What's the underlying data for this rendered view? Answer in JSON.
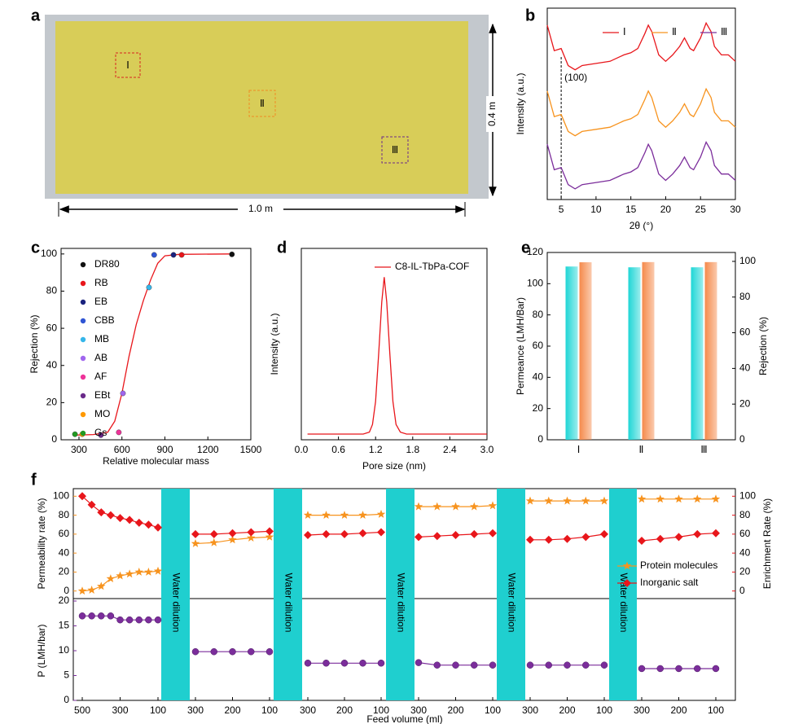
{
  "panel_labels": [
    "a",
    "b",
    "c",
    "d",
    "e",
    "f"
  ],
  "photo": {
    "regions": [
      "Ⅰ",
      "Ⅱ",
      "Ⅲ"
    ],
    "region_colors": [
      "#d9241f",
      "#f08a24",
      "#6b2a8a"
    ],
    "width_label": "1.0 m",
    "height_label": "0.4 m"
  },
  "chart_data": [
    {
      "type": "line",
      "xlabel": "2θ (°)",
      "ylabel": "Intensity (a.u.)",
      "x": [
        3,
        4,
        5,
        6,
        7,
        8,
        10,
        12,
        14,
        15,
        16,
        17,
        17.5,
        18,
        19,
        20,
        21,
        22,
        22.7,
        23.5,
        24,
        25,
        25.8,
        26.5,
        27,
        28,
        29,
        30
      ],
      "series": [
        {
          "name": "Ⅰ",
          "color": "#e8161b",
          "values": [
            77,
            65,
            66,
            58,
            56,
            58,
            59,
            60,
            63,
            64,
            66,
            73,
            77,
            74,
            63,
            60,
            63,
            67,
            71,
            66,
            65,
            71,
            78,
            74,
            67,
            63,
            63,
            60
          ]
        },
        {
          "name": "Ⅱ",
          "color": "#f7931e",
          "values": [
            46,
            34,
            35,
            27,
            25,
            27,
            28,
            29,
            32,
            33,
            35,
            42,
            46,
            43,
            32,
            29,
            32,
            36,
            40,
            35,
            34,
            40,
            47,
            43,
            36,
            32,
            32,
            29
          ]
        },
        {
          "name": "Ⅲ",
          "color": "#7b2d9b",
          "values": [
            21,
            9,
            10,
            2,
            0,
            2,
            3,
            4,
            7,
            8,
            10,
            17,
            21,
            18,
            7,
            4,
            7,
            11,
            15,
            10,
            9,
            15,
            22,
            18,
            11,
            7,
            7,
            4
          ]
        }
      ],
      "ref_line": {
        "x": 5,
        "label": "(100)"
      },
      "xlim": [
        3,
        30
      ],
      "xticks": [
        5,
        10,
        15,
        20,
        25,
        30
      ],
      "ylim": [
        -5,
        85
      ]
    },
    {
      "type": "scatter",
      "xlabel": "Relative molecular mass",
      "ylabel": "Rejection (%)",
      "series": [
        {
          "name": "DR80",
          "color": "#111111",
          "x": [
            1368
          ],
          "values": [
            99.8
          ]
        },
        {
          "name": "RB",
          "color": "#e8161b",
          "x": [
            1017
          ],
          "values": [
            99.5
          ]
        },
        {
          "name": "EB",
          "color": "#1a237e",
          "x": [
            960
          ],
          "values": [
            99.5
          ]
        },
        {
          "name": "CBB",
          "color": "#2f55d4",
          "x": [
            825
          ],
          "values": [
            99.5
          ]
        },
        {
          "name": "MB",
          "color": "#35b6ea",
          "x": [
            789
          ],
          "values": [
            82
          ]
        },
        {
          "name": "AB",
          "color": "#a066ee",
          "x": [
            607
          ],
          "values": [
            25
          ]
        },
        {
          "name": "AF",
          "color": "#ee3399",
          "x": [
            578
          ],
          "values": [
            4
          ]
        },
        {
          "name": "EBt",
          "color": "#6a2a8a",
          "x": [
            453
          ],
          "values": [
            2.5
          ]
        },
        {
          "name": "MO",
          "color": "#ff9900",
          "x": [
            323
          ],
          "values": [
            3
          ]
        },
        {
          "name": "Gs",
          "color": "#229922",
          "x": [
            272
          ],
          "values": [
            3
          ]
        }
      ],
      "fit_line": {
        "color": "#e8161b",
        "x": [
          272,
          400,
          500,
          550,
          600,
          650,
          700,
          750,
          800,
          850,
          900,
          1000,
          1373
        ],
        "values": [
          2.5,
          2.8,
          4,
          10,
          25,
          45,
          62,
          75,
          86,
          95,
          99,
          99.8,
          100
        ]
      },
      "xlim": [
        175,
        1500
      ],
      "xticks": [
        300,
        600,
        900,
        1200,
        1500
      ],
      "ylim": [
        0,
        103
      ],
      "yticks": [
        0,
        20,
        40,
        60,
        80,
        100
      ]
    },
    {
      "type": "line",
      "xlabel": "Pore size (nm)",
      "ylabel": "Intensity (a.u.)",
      "x": [
        0.1,
        0.6,
        1.0,
        1.1,
        1.15,
        1.2,
        1.25,
        1.3,
        1.34,
        1.38,
        1.43,
        1.48,
        1.53,
        1.6,
        1.7,
        2.0,
        2.5,
        3.0
      ],
      "series": [
        {
          "name": "C8-IL-TbPa-COF",
          "color": "#e8161b",
          "values": [
            3,
            3,
            3,
            4,
            8,
            20,
            45,
            72,
            85,
            72,
            45,
            20,
            8,
            4,
            3,
            3,
            3,
            3
          ]
        }
      ],
      "xlim": [
        0,
        3
      ],
      "xticks": [
        {
          "value": 0,
          "label": "0.0"
        },
        0.6,
        1.2,
        1.8,
        2.4,
        {
          "value": 3,
          "label": "3.0"
        }
      ],
      "ylim": [
        0,
        100
      ]
    },
    {
      "type": "bar",
      "ylabel": "Permeance (LMH/Bar)",
      "y2label": "Rejection (%)",
      "categories": [
        "Ⅰ",
        "Ⅱ",
        "Ⅲ"
      ],
      "category_colors": [
        "#e8161b",
        "#f7931e",
        "#7b2d9b"
      ],
      "series": [
        {
          "color": "#1fd6d6",
          "axis": "y",
          "values": [
            111,
            110.5,
            110.5
          ]
        },
        {
          "color": "#f58a4b",
          "axis": "y2",
          "values": [
            99.5,
            99.6,
            99.6
          ]
        }
      ],
      "ylim": [
        0,
        120
      ],
      "yticks": [
        0,
        20,
        40,
        60,
        80,
        100,
        120
      ],
      "y2lim": [
        0,
        105
      ],
      "y2ticks": [
        0,
        20,
        40,
        60,
        80,
        100
      ]
    },
    {
      "type": "segmented",
      "xlabel": "Feed volume (ml)",
      "ylabel": "Permeability rate (%)",
      "y2label": "Enrichment Rate (%)",
      "y3label": "P (LMH/bar)",
      "separator_label": "Water dilution",
      "separator_color": "#1fcfcf",
      "segments": [
        {
          "xlim": [
            500,
            100
          ],
          "x": [
            500,
            450,
            400,
            350,
            300,
            250,
            200,
            150,
            100
          ],
          "xticks": [
            500,
            300,
            100
          ]
        },
        {
          "xlim": [
            300,
            100
          ],
          "x": [
            300,
            250,
            200,
            150,
            100
          ],
          "xticks": [
            300,
            200,
            100
          ]
        },
        {
          "xlim": [
            300,
            100
          ],
          "x": [
            300,
            250,
            200,
            150,
            100
          ],
          "xticks": [
            300,
            200,
            100
          ]
        },
        {
          "xlim": [
            300,
            100
          ],
          "x": [
            300,
            250,
            200,
            150,
            100
          ],
          "xticks": [
            300,
            200,
            100
          ]
        },
        {
          "xlim": [
            300,
            100
          ],
          "x": [
            300,
            250,
            200,
            150,
            100
          ],
          "xticks": [
            300,
            200,
            100
          ]
        },
        {
          "xlim": [
            300,
            100
          ],
          "x": [
            300,
            250,
            200,
            150,
            100
          ],
          "xticks": [
            300,
            200,
            100
          ]
        }
      ],
      "series": [
        {
          "name": "Protein molecules",
          "color": "#f7931e",
          "marker": "star",
          "axis": "y",
          "values": [
            [
              0,
              1,
              5,
              13,
              16,
              18,
              20,
              20,
              21
            ],
            [
              50,
              51,
              54,
              56,
              57
            ],
            [
              80,
              80,
              80,
              80,
              81
            ],
            [
              89,
              89,
              89,
              89,
              90
            ],
            [
              95,
              95,
              95,
              95,
              95
            ],
            [
              97,
              97,
              97,
              97,
              97
            ]
          ]
        },
        {
          "name": "Inorganic salt",
          "color": "#e8161b",
          "marker": "diamond",
          "axis": "y2",
          "values": [
            [
              100,
              91,
              83,
              80,
              77,
              75,
              72,
              70,
              67
            ],
            [
              60,
              60,
              61,
              62,
              63
            ],
            [
              59,
              60,
              60,
              61,
              62
            ],
            [
              57,
              58,
              59,
              60,
              61
            ],
            [
              54,
              54,
              55,
              57,
              60
            ],
            [
              53,
              55,
              57,
              60,
              61
            ]
          ]
        },
        {
          "color": "#7b2d9b",
          "marker": "circle",
          "axis": "y3",
          "values": [
            [
              17,
              17,
              17,
              17,
              16.2,
              16.2,
              16.2,
              16.2,
              16.2
            ],
            [
              9.8,
              9.8,
              9.8,
              9.8,
              9.8
            ],
            [
              7.5,
              7.5,
              7.5,
              7.5,
              7.5
            ],
            [
              7.6,
              7.1,
              7.1,
              7.1,
              7.1
            ],
            [
              7.1,
              7.1,
              7.1,
              7.1,
              7.1
            ],
            [
              6.4,
              6.4,
              6.4,
              6.4,
              6.4
            ]
          ]
        }
      ],
      "ylim": [
        -8,
        108
      ],
      "yticks": [
        0,
        20,
        40,
        60,
        80,
        100
      ],
      "y2lim": [
        -8,
        108
      ],
      "y2ticks": [
        0,
        20,
        40,
        60,
        80,
        100
      ],
      "y3lim": [
        0,
        20
      ],
      "y3ticks": [
        0,
        5,
        10,
        15,
        20
      ]
    }
  ]
}
